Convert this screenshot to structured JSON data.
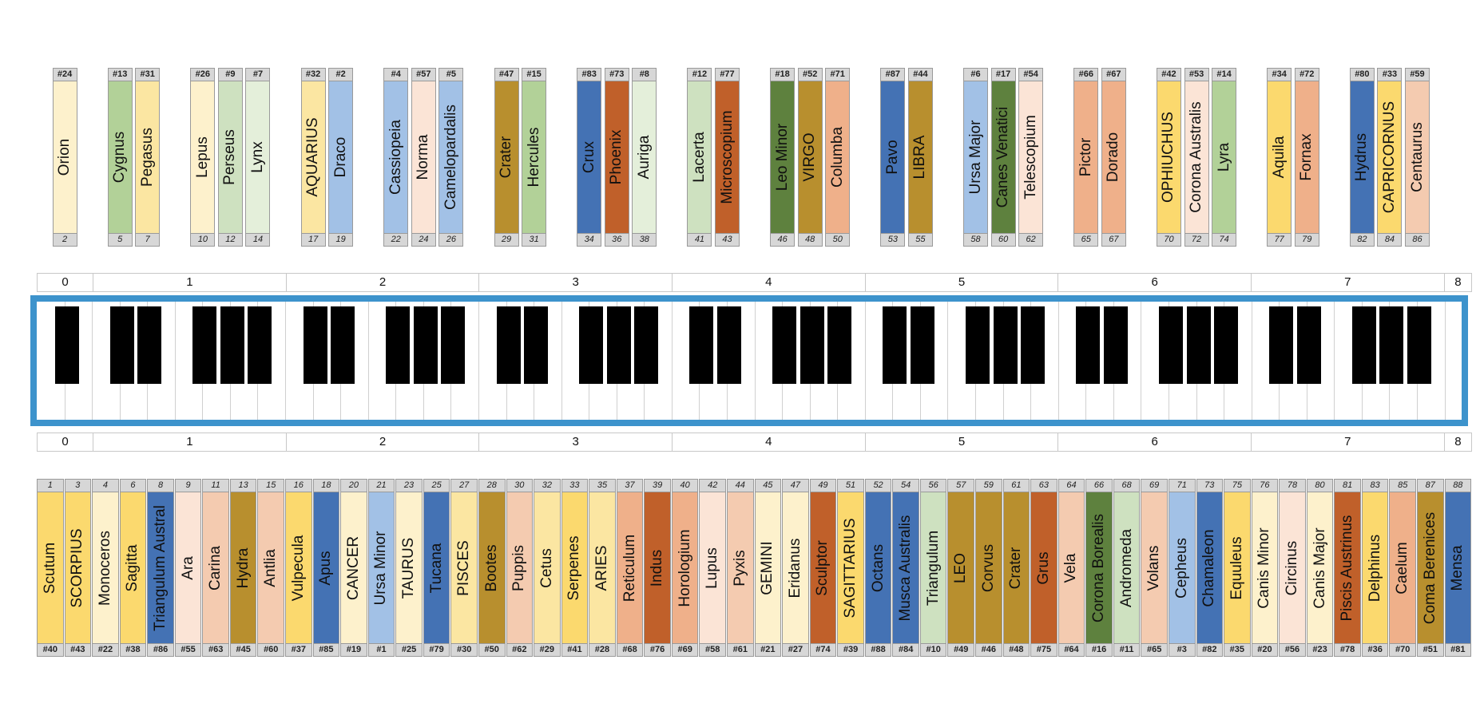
{
  "top_cards": [
    {
      "id": "#24",
      "name": "Orion",
      "pos": "2",
      "color": "#fdf1cc"
    },
    {
      "id": "#13",
      "name": "Cygnus",
      "pos": "5",
      "color": "#b2d198"
    },
    {
      "id": "#31",
      "name": "Pegasus",
      "pos": "7",
      "color": "#fbe6a2"
    },
    {
      "id": "#26",
      "name": "Lepus",
      "pos": "10",
      "color": "#fdf1cc"
    },
    {
      "id": "#9",
      "name": "Perseus",
      "pos": "12",
      "color": "#cee1c0"
    },
    {
      "id": "#7",
      "name": "Lynx",
      "pos": "14",
      "color": "#e4efda"
    },
    {
      "id": "#32",
      "name": "AQUARIUS",
      "pos": "17",
      "color": "#fbe6a2"
    },
    {
      "id": "#2",
      "name": "Draco",
      "pos": "19",
      "color": "#a2c1e6"
    },
    {
      "id": "#4",
      "name": "Cassiopeia",
      "pos": "22",
      "color": "#a2c1e6"
    },
    {
      "id": "#57",
      "name": "Norma",
      "pos": "24",
      "color": "#fbe4d6"
    },
    {
      "id": "#5",
      "name": "Camelopardalis",
      "pos": "26",
      "color": "#a2c1e6"
    },
    {
      "id": "#47",
      "name": "Crater",
      "pos": "29",
      "color": "#b88f2e"
    },
    {
      "id": "#15",
      "name": "Hercules",
      "pos": "31",
      "color": "#b2d198"
    },
    {
      "id": "#83",
      "name": "Crux",
      "pos": "34",
      "color": "#4472b4"
    },
    {
      "id": "#73",
      "name": "Phoenix",
      "pos": "36",
      "color": "#c0602a"
    },
    {
      "id": "#8",
      "name": "Auriga",
      "pos": "38",
      "color": "#e4efda"
    },
    {
      "id": "#12",
      "name": "Lacerta",
      "pos": "41",
      "color": "#cee1c0"
    },
    {
      "id": "#77",
      "name": "Microscopium",
      "pos": "43",
      "color": "#c0602a"
    },
    {
      "id": "#18",
      "name": "Leo Minor",
      "pos": "46",
      "color": "#5e813e"
    },
    {
      "id": "#52",
      "name": "VIRGO",
      "pos": "48",
      "color": "#b88f2e"
    },
    {
      "id": "#71",
      "name": "Columba",
      "pos": "50",
      "color": "#efb08a"
    },
    {
      "id": "#87",
      "name": "Pavo",
      "pos": "53",
      "color": "#4472b4"
    },
    {
      "id": "#44",
      "name": "LIBRA",
      "pos": "55",
      "color": "#b88f2e"
    },
    {
      "id": "#6",
      "name": "Ursa Major",
      "pos": "58",
      "color": "#a2c1e6"
    },
    {
      "id": "#17",
      "name": "Canes Venatici",
      "pos": "60",
      "color": "#5e813e"
    },
    {
      "id": "#54",
      "name": "Telescopium",
      "pos": "62",
      "color": "#fbe4d6"
    },
    {
      "id": "#66",
      "name": "Pictor",
      "pos": "65",
      "color": "#efb08a"
    },
    {
      "id": "#67",
      "name": "Dorado",
      "pos": "67",
      "color": "#efb08a"
    },
    {
      "id": "#42",
      "name": "OPHIUCHUS",
      "pos": "70",
      "color": "#fbd96e"
    },
    {
      "id": "#53",
      "name": "Corona Australis",
      "pos": "72",
      "color": "#fbe4d6"
    },
    {
      "id": "#14",
      "name": "Lyra",
      "pos": "74",
      "color": "#b2d198"
    },
    {
      "id": "#34",
      "name": "Aquila",
      "pos": "77",
      "color": "#fbd96e"
    },
    {
      "id": "#72",
      "name": "Fornax",
      "pos": "79",
      "color": "#efb08a"
    },
    {
      "id": "#80",
      "name": "Hydrus",
      "pos": "82",
      "color": "#4472b4"
    },
    {
      "id": "#33",
      "name": "CAPRICORNUS",
      "pos": "84",
      "color": "#fbd96e"
    },
    {
      "id": "#59",
      "name": "Centaurus",
      "pos": "86",
      "color": "#f4cbb0"
    }
  ],
  "bottom_cards": [
    {
      "pos": "1",
      "name": "Scutum",
      "id": "#40",
      "color": "#fbd96e"
    },
    {
      "pos": "3",
      "name": "SCORPIUS",
      "id": "#43",
      "color": "#fbd96e"
    },
    {
      "pos": "4",
      "name": "Monoceros",
      "id": "#22",
      "color": "#fdf1cc"
    },
    {
      "pos": "6",
      "name": "Sagitta",
      "id": "#38",
      "color": "#fbd96e"
    },
    {
      "pos": "8",
      "name": "Triangulum Austral",
      "id": "#86",
      "color": "#4472b4"
    },
    {
      "pos": "9",
      "name": "Ara",
      "id": "#55",
      "color": "#fbe4d6"
    },
    {
      "pos": "11",
      "name": "Carina",
      "id": "#63",
      "color": "#f4cbb0"
    },
    {
      "pos": "13",
      "name": "Hydra",
      "id": "#45",
      "color": "#b88f2e"
    },
    {
      "pos": "15",
      "name": "Antlia",
      "id": "#60",
      "color": "#f4cbb0"
    },
    {
      "pos": "16",
      "name": "Vulpecula",
      "id": "#37",
      "color": "#fbd96e"
    },
    {
      "pos": "18",
      "name": "Apus",
      "id": "#85",
      "color": "#4472b4"
    },
    {
      "pos": "20",
      "name": "CANCER",
      "id": "#19",
      "color": "#fdf1cc"
    },
    {
      "pos": "21",
      "name": "Ursa Minor",
      "id": "#1",
      "color": "#a2c1e6"
    },
    {
      "pos": "23",
      "name": "TAURUS",
      "id": "#25",
      "color": "#fdf1cc"
    },
    {
      "pos": "25",
      "name": "Tucana",
      "id": "#79",
      "color": "#4472b4"
    },
    {
      "pos": "27",
      "name": "PISCES",
      "id": "#30",
      "color": "#fbe6a2"
    },
    {
      "pos": "28",
      "name": "Bootes",
      "id": "#50",
      "color": "#b88f2e"
    },
    {
      "pos": "30",
      "name": "Puppis",
      "id": "#62",
      "color": "#f4cbb0"
    },
    {
      "pos": "32",
      "name": "Cetus",
      "id": "#29",
      "color": "#fbe6a2"
    },
    {
      "pos": "33",
      "name": "Serpenes",
      "id": "#41",
      "color": "#fbd96e"
    },
    {
      "pos": "35",
      "name": "ARIES",
      "id": "#28",
      "color": "#fbe6a2"
    },
    {
      "pos": "37",
      "name": "Reticulum",
      "id": "#68",
      "color": "#efb08a"
    },
    {
      "pos": "39",
      "name": "Indus",
      "id": "#76",
      "color": "#c0602a"
    },
    {
      "pos": "40",
      "name": "Horologium",
      "id": "#69",
      "color": "#efb08a"
    },
    {
      "pos": "42",
      "name": "Lupus",
      "id": "#58",
      "color": "#fbe4d6"
    },
    {
      "pos": "44",
      "name": "Pyxis",
      "id": "#61",
      "color": "#f4cbb0"
    },
    {
      "pos": "45",
      "name": "GEMINI",
      "id": "#21",
      "color": "#fdf1cc"
    },
    {
      "pos": "47",
      "name": "Eridanus",
      "id": "#27",
      "color": "#fdf1cc"
    },
    {
      "pos": "49",
      "name": "Sculptor",
      "id": "#74",
      "color": "#c0602a"
    },
    {
      "pos": "51",
      "name": "SAGITTARIUS",
      "id": "#39",
      "color": "#fbd96e"
    },
    {
      "pos": "52",
      "name": "Octans",
      "id": "#88",
      "color": "#4472b4"
    },
    {
      "pos": "54",
      "name": "Musca Australis",
      "id": "#84",
      "color": "#4472b4"
    },
    {
      "pos": "56",
      "name": "Triangulum",
      "id": "#10",
      "color": "#cee1c0"
    },
    {
      "pos": "57",
      "name": "LEO",
      "id": "#49",
      "color": "#b88f2e"
    },
    {
      "pos": "59",
      "name": "Corvus",
      "id": "#46",
      "color": "#b88f2e"
    },
    {
      "pos": "61",
      "name": "Crater",
      "id": "#48",
      "color": "#b88f2e"
    },
    {
      "pos": "63",
      "name": "Grus",
      "id": "#75",
      "color": "#c0602a"
    },
    {
      "pos": "64",
      "name": "Vela",
      "id": "#64",
      "color": "#f4cbb0"
    },
    {
      "pos": "66",
      "name": "Corona Borealis",
      "id": "#16",
      "color": "#5e813e"
    },
    {
      "pos": "68",
      "name": "Andromeda",
      "id": "#11",
      "color": "#cee1c0"
    },
    {
      "pos": "69",
      "name": "Volans",
      "id": "#65",
      "color": "#f4cbb0"
    },
    {
      "pos": "71",
      "name": "Cepheus",
      "id": "#3",
      "color": "#a2c1e6"
    },
    {
      "pos": "73",
      "name": "Chamaleon",
      "id": "#82",
      "color": "#4472b4"
    },
    {
      "pos": "75",
      "name": "Equuleus",
      "id": "#35",
      "color": "#fbd96e"
    },
    {
      "pos": "76",
      "name": "Canis Minor",
      "id": "#20",
      "color": "#fdf1cc"
    },
    {
      "pos": "78",
      "name": "Circinus",
      "id": "#56",
      "color": "#fbe4d6"
    },
    {
      "pos": "80",
      "name": "Canis Major",
      "id": "#23",
      "color": "#fdf1cc"
    },
    {
      "pos": "81",
      "name": "Piscis Austrinus",
      "id": "#78",
      "color": "#c0602a"
    },
    {
      "pos": "83",
      "name": "Delphinus",
      "id": "#36",
      "color": "#fbd96e"
    },
    {
      "pos": "85",
      "name": "Caelum",
      "id": "#70",
      "color": "#efb08a"
    },
    {
      "pos": "87",
      "name": "Coma Berenices",
      "id": "#51",
      "color": "#b88f2e"
    },
    {
      "pos": "88",
      "name": "Mensa",
      "id": "#81",
      "color": "#4472b4"
    }
  ],
  "octaves": [
    "0",
    "1",
    "2",
    "3",
    "4",
    "5",
    "6",
    "7",
    "8"
  ],
  "keyboard": {
    "white_keys": 52,
    "black_key_white_indices": [
      0,
      2,
      3,
      5,
      6,
      7,
      9,
      10,
      12,
      13,
      14,
      16,
      17,
      19,
      20,
      21,
      23,
      24,
      26,
      27,
      28,
      30,
      31,
      33,
      34,
      35,
      37,
      38,
      40,
      41,
      42,
      44,
      45,
      47,
      48,
      49
    ],
    "frame_color": "#3d93cc"
  }
}
